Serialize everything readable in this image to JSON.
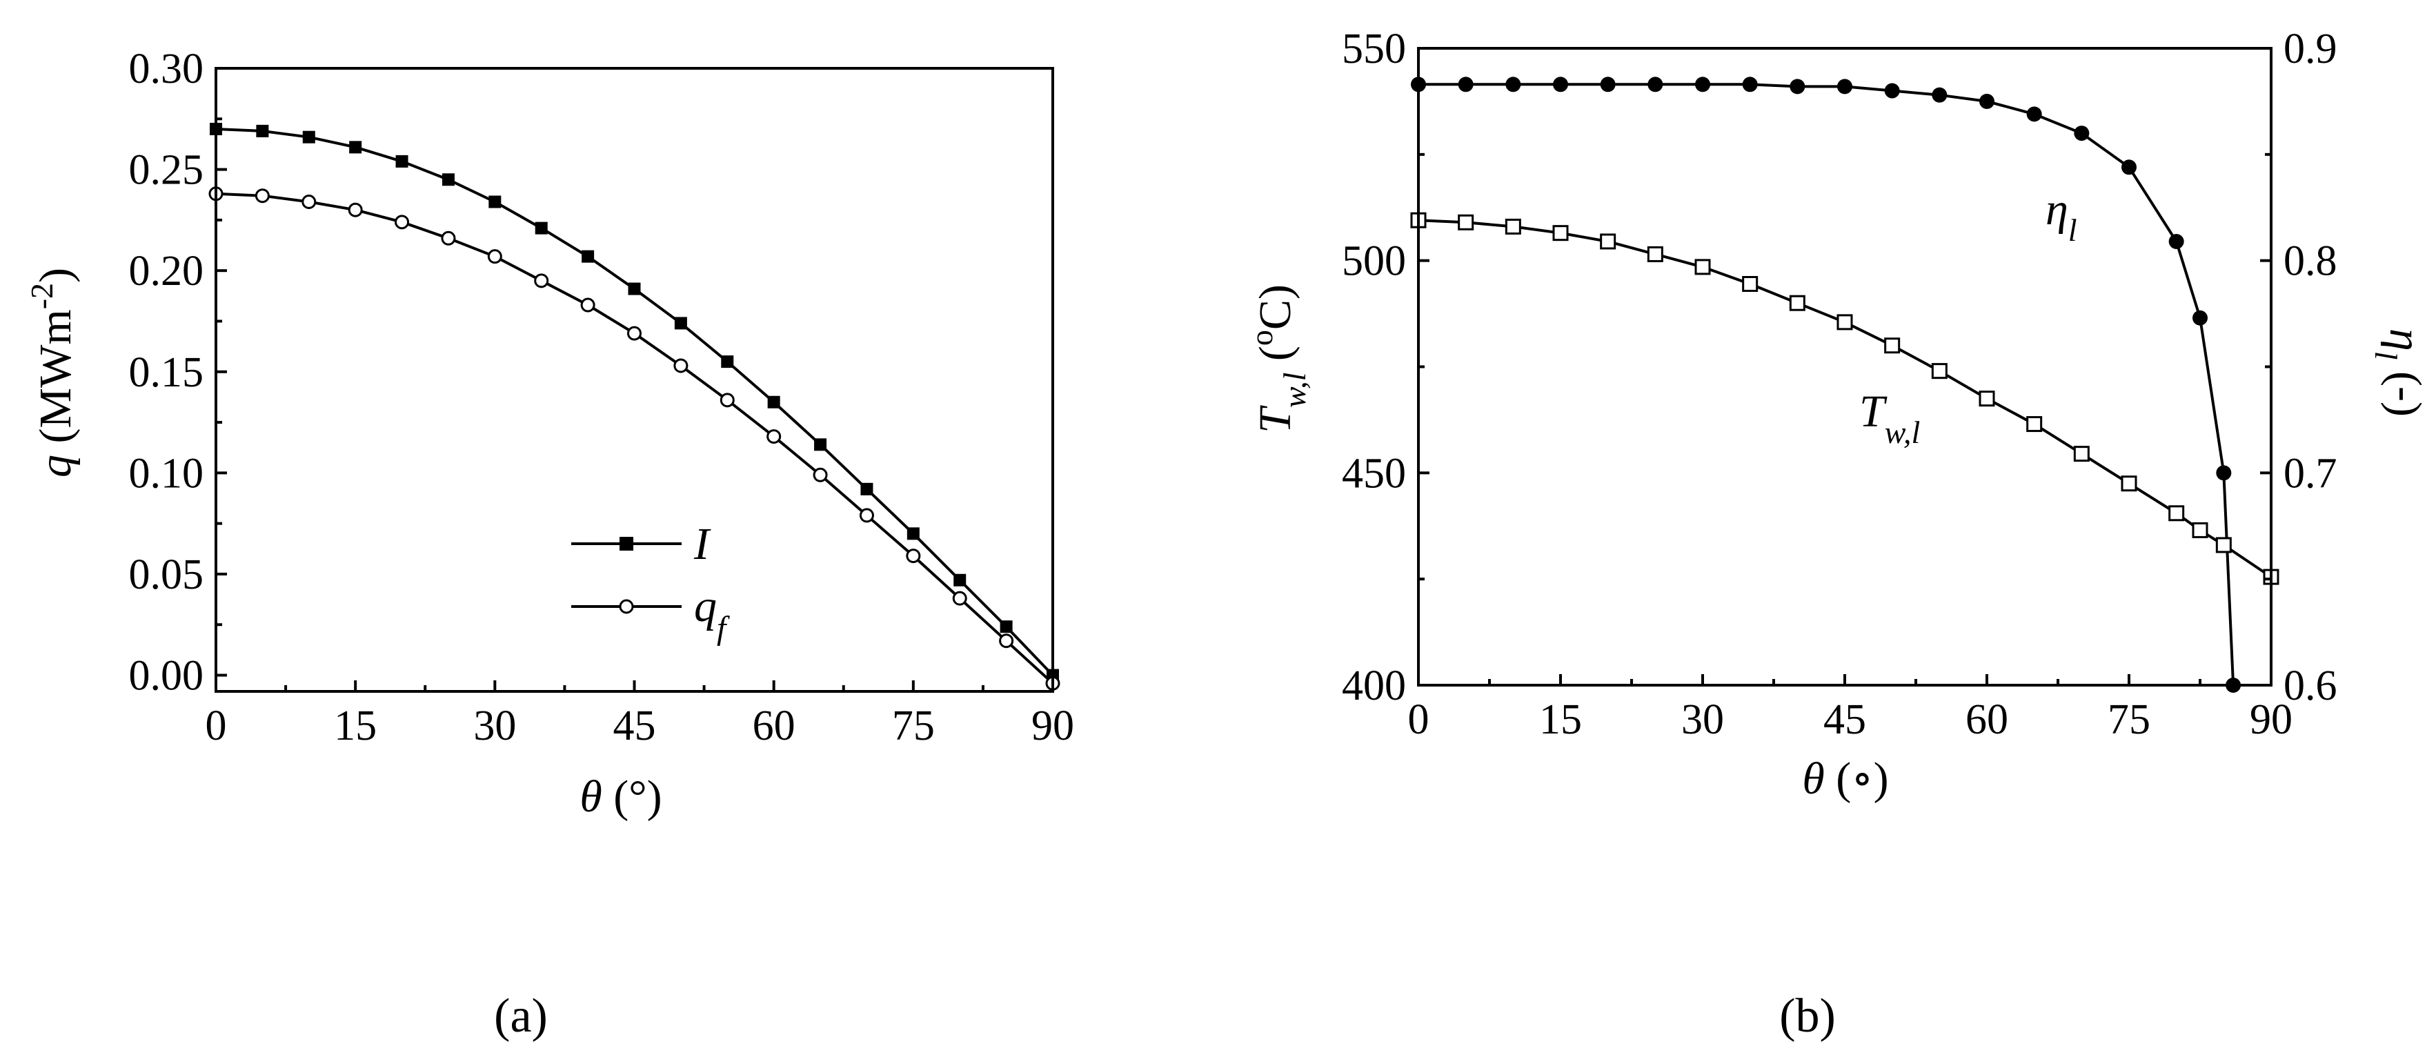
{
  "panels": {
    "a": {
      "label": "(a)"
    },
    "b": {
      "label": "(b)"
    }
  },
  "chart_data": [
    {
      "type": "line",
      "panel": "a",
      "title": "",
      "xlabel": "θ  (°)",
      "ylabel": "q (MWm⁻²)",
      "xlim": [
        0,
        90
      ],
      "ylim": [
        -0.008,
        0.3
      ],
      "xticks": [
        0,
        15,
        30,
        45,
        60,
        75,
        90
      ],
      "yticks": [
        0.0,
        0.05,
        0.1,
        0.15,
        0.2,
        0.25,
        0.3
      ],
      "grid": false,
      "legend_position": "lower-center",
      "series": [
        {
          "name": "I",
          "marker": "filled-square",
          "x": [
            0,
            5,
            10,
            15,
            20,
            25,
            30,
            35,
            40,
            45,
            50,
            55,
            60,
            65,
            70,
            75,
            80,
            85,
            90
          ],
          "y": [
            0.27,
            0.269,
            0.266,
            0.261,
            0.254,
            0.245,
            0.234,
            0.221,
            0.207,
            0.191,
            0.174,
            0.155,
            0.135,
            0.114,
            0.092,
            0.07,
            0.047,
            0.024,
            0.0
          ]
        },
        {
          "name": "q_f",
          "marker": "open-circle",
          "x": [
            0,
            5,
            10,
            15,
            20,
            25,
            30,
            35,
            40,
            45,
            50,
            55,
            60,
            65,
            70,
            75,
            80,
            85,
            90
          ],
          "y": [
            0.238,
            0.237,
            0.234,
            0.23,
            0.224,
            0.216,
            0.207,
            0.195,
            0.183,
            0.169,
            0.153,
            0.136,
            0.118,
            0.099,
            0.079,
            0.059,
            0.038,
            0.017,
            -0.004
          ]
        }
      ]
    },
    {
      "type": "line",
      "panel": "b",
      "title": "",
      "xlabel": "θ  (∘)",
      "ylabel_left": "T_w,l (°C)",
      "ylabel_right": "η_l (-)",
      "xlim": [
        0,
        90
      ],
      "ylim_left": [
        400,
        550
      ],
      "ylim_right": [
        0.6,
        0.9
      ],
      "xticks": [
        0,
        15,
        30,
        45,
        60,
        75,
        90
      ],
      "yticks_left": [
        400,
        450,
        500,
        550
      ],
      "yticks_right": [
        0.6,
        0.7,
        0.8,
        0.9
      ],
      "grid": false,
      "series": [
        {
          "name": "η_l",
          "axis": "right",
          "marker": "filled-circle",
          "x": [
            0,
            5,
            10,
            15,
            20,
            25,
            30,
            35,
            40,
            45,
            50,
            55,
            60,
            65,
            70,
            75,
            80,
            82.5,
            85,
            86
          ],
          "y": [
            0.883,
            0.883,
            0.883,
            0.883,
            0.883,
            0.883,
            0.883,
            0.883,
            0.882,
            0.882,
            0.88,
            0.878,
            0.875,
            0.869,
            0.86,
            0.844,
            0.809,
            0.773,
            0.7,
            0.6
          ]
        },
        {
          "name": "T_w,l",
          "axis": "left",
          "marker": "open-square",
          "x": [
            0,
            5,
            10,
            15,
            20,
            25,
            30,
            35,
            40,
            45,
            50,
            55,
            60,
            65,
            70,
            75,
            80,
            82.5,
            85,
            90
          ],
          "y": [
            509.5,
            509,
            508,
            506.5,
            504.5,
            501.5,
            498.5,
            494.5,
            490,
            485.5,
            480,
            474,
            467.5,
            461.5,
            454.5,
            447.5,
            440.5,
            436.5,
            433,
            425.5
          ]
        }
      ]
    }
  ]
}
